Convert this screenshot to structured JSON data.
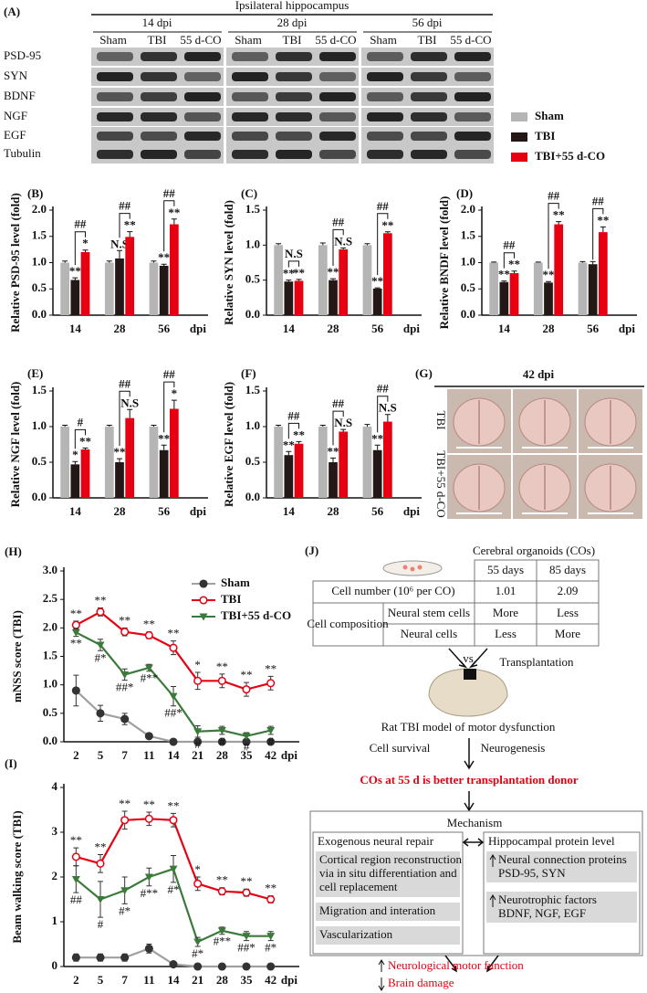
{
  "panel_a": {
    "label": "(A)",
    "title": "Ipsilateral hippocampus",
    "groups": [
      "14 dpi",
      "28 dpi",
      "56 dpi"
    ],
    "lanes": [
      "Sham",
      "TBI",
      "55 d-CO"
    ],
    "proteins": [
      "PSD-95",
      "SYN",
      "BDNF",
      "NGF",
      "EGF",
      "Tubulin"
    ]
  },
  "chart_data": [
    {
      "type": "bar",
      "panel": "(B)",
      "ylabel": "Relative PSD-95 level (fold)",
      "xlabel": "dpi",
      "categories": [
        "14",
        "28",
        "56"
      ],
      "ylim": [
        0,
        2
      ],
      "yticks": [
        {
          "value": 0,
          "label": "0.0"
        },
        {
          "value": 0.5,
          "label": "0.5"
        },
        {
          "value": 1,
          "label": "1.0"
        },
        {
          "value": 1.5,
          "label": "1.5"
        },
        {
          "value": 2,
          "label": "2.0"
        }
      ],
      "series": [
        {
          "name": "Sham",
          "color": "#b5b5b5",
          "values": [
            1,
            1,
            1
          ],
          "errors": [
            0.03,
            0.03,
            0.03
          ]
        },
        {
          "name": "TBI",
          "color": "#231815",
          "values": [
            0.67,
            1.08,
            0.94
          ],
          "errors": [
            0.04,
            0.15,
            0.03
          ],
          "annotations": [
            "**",
            "N.S",
            "**"
          ]
        },
        {
          "name": "TBI+55 d-CO",
          "color": "#e60012",
          "values": [
            1.2,
            1.49,
            1.73
          ],
          "errors": [
            0.04,
            0.1,
            0.1
          ],
          "annotations": [
            "*",
            "**",
            "**"
          ]
        }
      ],
      "brackets": [
        "##",
        "##",
        "##"
      ]
    },
    {
      "type": "bar",
      "panel": "(C)",
      "ylabel": "Relative SYN level (fold)",
      "xlabel": "dpi",
      "categories": [
        "14",
        "28",
        "56"
      ],
      "ylim": [
        0,
        1.5
      ],
      "yticks": [
        {
          "value": 0,
          "label": "0.0"
        },
        {
          "value": 0.5,
          "label": "0.5"
        },
        {
          "value": 1,
          "label": "1.0"
        },
        {
          "value": 1.5,
          "label": "1.5"
        }
      ],
      "series": [
        {
          "color": "#b5b5b5",
          "values": [
            1,
            1,
            1
          ],
          "errors": [
            0.02,
            0.03,
            0.02
          ]
        },
        {
          "color": "#231815",
          "values": [
            0.48,
            0.5,
            0.38
          ],
          "errors": [
            0.02,
            0.02,
            0.01
          ],
          "annotations": [
            "**",
            "**",
            "**"
          ]
        },
        {
          "color": "#e60012",
          "values": [
            0.49,
            0.94,
            1.17
          ],
          "errors": [
            0.02,
            0.02,
            0.02
          ],
          "annotations": [
            "**",
            "N.S",
            "**"
          ]
        }
      ],
      "brackets": [
        "N.S",
        "##",
        "##"
      ]
    },
    {
      "type": "bar",
      "panel": "(D)",
      "ylabel": "Relative BNDF level (fold)",
      "xlabel": "dpi",
      "categories": [
        "14",
        "28",
        "56"
      ],
      "ylim": [
        0,
        2
      ],
      "yticks": [
        {
          "value": 0,
          "label": "0.0"
        },
        {
          "value": 0.5,
          "label": "0.5"
        },
        {
          "value": 1,
          "label": "1.0"
        },
        {
          "value": 1.5,
          "label": "1.5"
        },
        {
          "value": 2,
          "label": "2.0"
        }
      ],
      "series": [
        {
          "color": "#b5b5b5",
          "values": [
            1,
            1,
            1
          ],
          "errors": [
            0.01,
            0.01,
            0.02
          ]
        },
        {
          "color": "#231815",
          "values": [
            0.63,
            0.62,
            0.97
          ],
          "errors": [
            0.02,
            0.02,
            0.05
          ],
          "annotations": [
            "**",
            "**",
            null
          ]
        },
        {
          "color": "#e60012",
          "values": [
            0.8,
            1.73,
            1.58
          ],
          "errors": [
            0.04,
            0.05,
            0.1
          ],
          "annotations": [
            "**",
            "**",
            "**"
          ]
        }
      ],
      "brackets": [
        "##",
        "##",
        "##"
      ]
    },
    {
      "type": "bar",
      "panel": "(E)",
      "ylabel": "Relative NGF level (fold)",
      "xlabel": "dpi",
      "categories": [
        "14",
        "28",
        "56"
      ],
      "ylim": [
        0,
        1.5
      ],
      "yticks": [
        {
          "value": 0,
          "label": "0.0"
        },
        {
          "value": 0.5,
          "label": "0.5"
        },
        {
          "value": 1,
          "label": "1.0"
        },
        {
          "value": 1.5,
          "label": "1.5"
        }
      ],
      "series": [
        {
          "color": "#b5b5b5",
          "values": [
            1,
            1,
            1
          ],
          "errors": [
            0.02,
            0.02,
            0.02
          ]
        },
        {
          "color": "#231815",
          "values": [
            0.47,
            0.5,
            0.67
          ],
          "errors": [
            0.04,
            0.05,
            0.07
          ],
          "annotations": [
            "*",
            "**",
            "**"
          ]
        },
        {
          "color": "#e60012",
          "values": [
            0.68,
            1.12,
            1.25
          ],
          "errors": [
            0.02,
            0.12,
            0.12
          ],
          "annotations": [
            "**",
            "N.S",
            "*"
          ]
        }
      ],
      "brackets": [
        "#",
        "##",
        "##"
      ]
    },
    {
      "type": "bar",
      "panel": "(F)",
      "ylabel": "Relative EGF level (fold)",
      "xlabel": "dpi",
      "categories": [
        "14",
        "28",
        "56"
      ],
      "ylim": [
        0,
        1.5
      ],
      "yticks": [
        {
          "value": 0,
          "label": "0.0"
        },
        {
          "value": 0.5,
          "label": "0.5"
        },
        {
          "value": 1,
          "label": "1.0"
        },
        {
          "value": 1.5,
          "label": "1.5"
        }
      ],
      "series": [
        {
          "color": "#b5b5b5",
          "values": [
            1,
            1,
            1
          ],
          "errors": [
            0.02,
            0.02,
            0.03
          ]
        },
        {
          "color": "#231815",
          "values": [
            0.6,
            0.5,
            0.67
          ],
          "errors": [
            0.05,
            0.06,
            0.07
          ],
          "annotations": [
            "**",
            "**",
            "**"
          ]
        },
        {
          "color": "#e60012",
          "values": [
            0.76,
            0.93,
            1.07
          ],
          "errors": [
            0.03,
            0.03,
            0.1
          ],
          "annotations": [
            "**",
            "N.S",
            "N.S"
          ]
        }
      ],
      "brackets": [
        "##",
        "##",
        "##"
      ]
    },
    {
      "type": "line",
      "panel": "(H)",
      "ylabel": "mNSS score (TBI)",
      "xlabel": "dpi",
      "categories": [
        "2",
        "5",
        "7",
        "11",
        "14",
        "21",
        "28",
        "35",
        "42"
      ],
      "ylim": [
        0,
        3
      ],
      "yticks": [
        {
          "value": 0,
          "label": "0.0"
        },
        {
          "value": 0.5,
          "label": "0.5"
        },
        {
          "value": 1,
          "label": "1.0"
        },
        {
          "value": 1.5,
          "label": "1.5"
        },
        {
          "value": 2,
          "label": "2.0"
        },
        {
          "value": 2.5,
          "label": "2.5"
        },
        {
          "value": 3,
          "label": "3.0"
        }
      ],
      "legend": "upper right",
      "series": [
        {
          "name": "Sham",
          "color": "#a0a0a0",
          "marker": "circle",
          "values": [
            0.9,
            0.5,
            0.4,
            0.1,
            0,
            0,
            0,
            0,
            0
          ],
          "errors": [
            0.27,
            0.14,
            0.1,
            0.04,
            0,
            0,
            0,
            0,
            0
          ]
        },
        {
          "name": "TBI",
          "color": "#e60012",
          "marker": "open-circle",
          "values": [
            2.05,
            2.28,
            1.93,
            1.87,
            1.65,
            1.07,
            1.07,
            0.92,
            1.03
          ],
          "errors": [
            0.07,
            0.07,
            0.07,
            0.06,
            0.12,
            0.15,
            0.12,
            0.12,
            0.12
          ],
          "annotations": [
            "**",
            "**",
            "**",
            "**",
            "**",
            "*",
            "**",
            "**",
            "**"
          ]
        },
        {
          "name": "TBI+55 d-CO",
          "color": "#3b7a3b",
          "marker": "triangle",
          "values": [
            1.92,
            1.7,
            1.18,
            1.3,
            0.8,
            0.18,
            0.2,
            0.1,
            0.2
          ],
          "errors": [
            0.07,
            0.1,
            0.1,
            0.06,
            0.17,
            0.1,
            0.07,
            0.06,
            0.07
          ],
          "annotations": [
            "**",
            "#*",
            "##*",
            "#**",
            "##*",
            "#",
            "#",
            "#",
            "#"
          ]
        }
      ]
    },
    {
      "type": "line",
      "panel": "(I)",
      "ylabel": "Beam walking score (TBI)",
      "xlabel": "dpi",
      "categories": [
        "2",
        "5",
        "7",
        "11",
        "14",
        "21",
        "28",
        "35",
        "42"
      ],
      "ylim": [
        0,
        4
      ],
      "yticks": [
        0,
        1,
        2,
        3,
        4
      ],
      "series": [
        {
          "color": "#a0a0a0",
          "marker": "circle",
          "values": [
            0.2,
            0.2,
            0.2,
            0.4,
            0.05,
            0,
            0,
            0,
            0
          ],
          "errors": [
            0.08,
            0.08,
            0.08,
            0.1,
            0.05,
            0,
            0,
            0,
            0
          ]
        },
        {
          "color": "#e60012",
          "marker": "open-circle",
          "values": [
            2.45,
            2.3,
            3.27,
            3.3,
            3.27,
            1.85,
            1.68,
            1.65,
            1.5
          ],
          "errors": [
            0.2,
            0.2,
            0.2,
            0.15,
            0.15,
            0.15,
            0.08,
            0.08,
            0.08
          ],
          "annotations": [
            "**",
            "**",
            "**",
            "**",
            "**",
            "*",
            "**",
            "**",
            "**"
          ]
        },
        {
          "color": "#3b7a3b",
          "marker": "triangle",
          "values": [
            1.95,
            1.5,
            1.7,
            2.0,
            2.18,
            0.55,
            0.8,
            0.68,
            0.68
          ],
          "errors": [
            0.3,
            0.4,
            0.3,
            0.2,
            0.3,
            0.1,
            0.08,
            0.1,
            0.1
          ],
          "annotations": [
            "##",
            "#",
            "#*",
            "#**",
            "#*",
            "#*",
            "#**",
            "##*",
            "#*"
          ]
        }
      ]
    }
  ],
  "panel_g": {
    "label": "(G)",
    "title": "42 dpi",
    "rows": [
      "TBI",
      "TBI+55 d-CO"
    ]
  },
  "panel_j": {
    "label": "(J)",
    "title": "Cerebral organoids (COs)",
    "table": {
      "columns": [
        "55 days",
        "85 days"
      ],
      "cell_number": {
        "label": "Cell number (10⁶ per CO)",
        "values": [
          1.01,
          2.09
        ]
      },
      "composition": {
        "label": "Cell composition",
        "rows": [
          {
            "label": "Neural stem cells",
            "values": [
              "More",
              "Less"
            ]
          },
          {
            "label": "Neural cells",
            "values": [
              "Less",
              "More"
            ]
          }
        ]
      }
    },
    "vs": "vs",
    "transplantation": "Transplantation",
    "model": "Rat TBI model of motor dysfunction",
    "outcomes": [
      "Cell survival",
      "Neurogenesis"
    ],
    "conclusion": "COs at 55 d is better transplantation donor",
    "mechanism": {
      "title": "Mechanism",
      "left": {
        "title": "Exogenous neural repair",
        "items": [
          [
            "Cortical region reconstruction",
            "via in situ differentiation and",
            "cell replacement"
          ],
          [
            "Migration and interation"
          ],
          [
            "Vascularization"
          ]
        ]
      },
      "right": {
        "title": "Hippocampal protein level",
        "items": [
          [
            "Neural connection proteins",
            "PSD-95, SYN"
          ],
          [
            "Neurotrophic factors",
            "BDNF, NGF, EGF"
          ]
        ]
      }
    },
    "effects": [
      "Neurological motor function",
      "Brain damage"
    ]
  }
}
